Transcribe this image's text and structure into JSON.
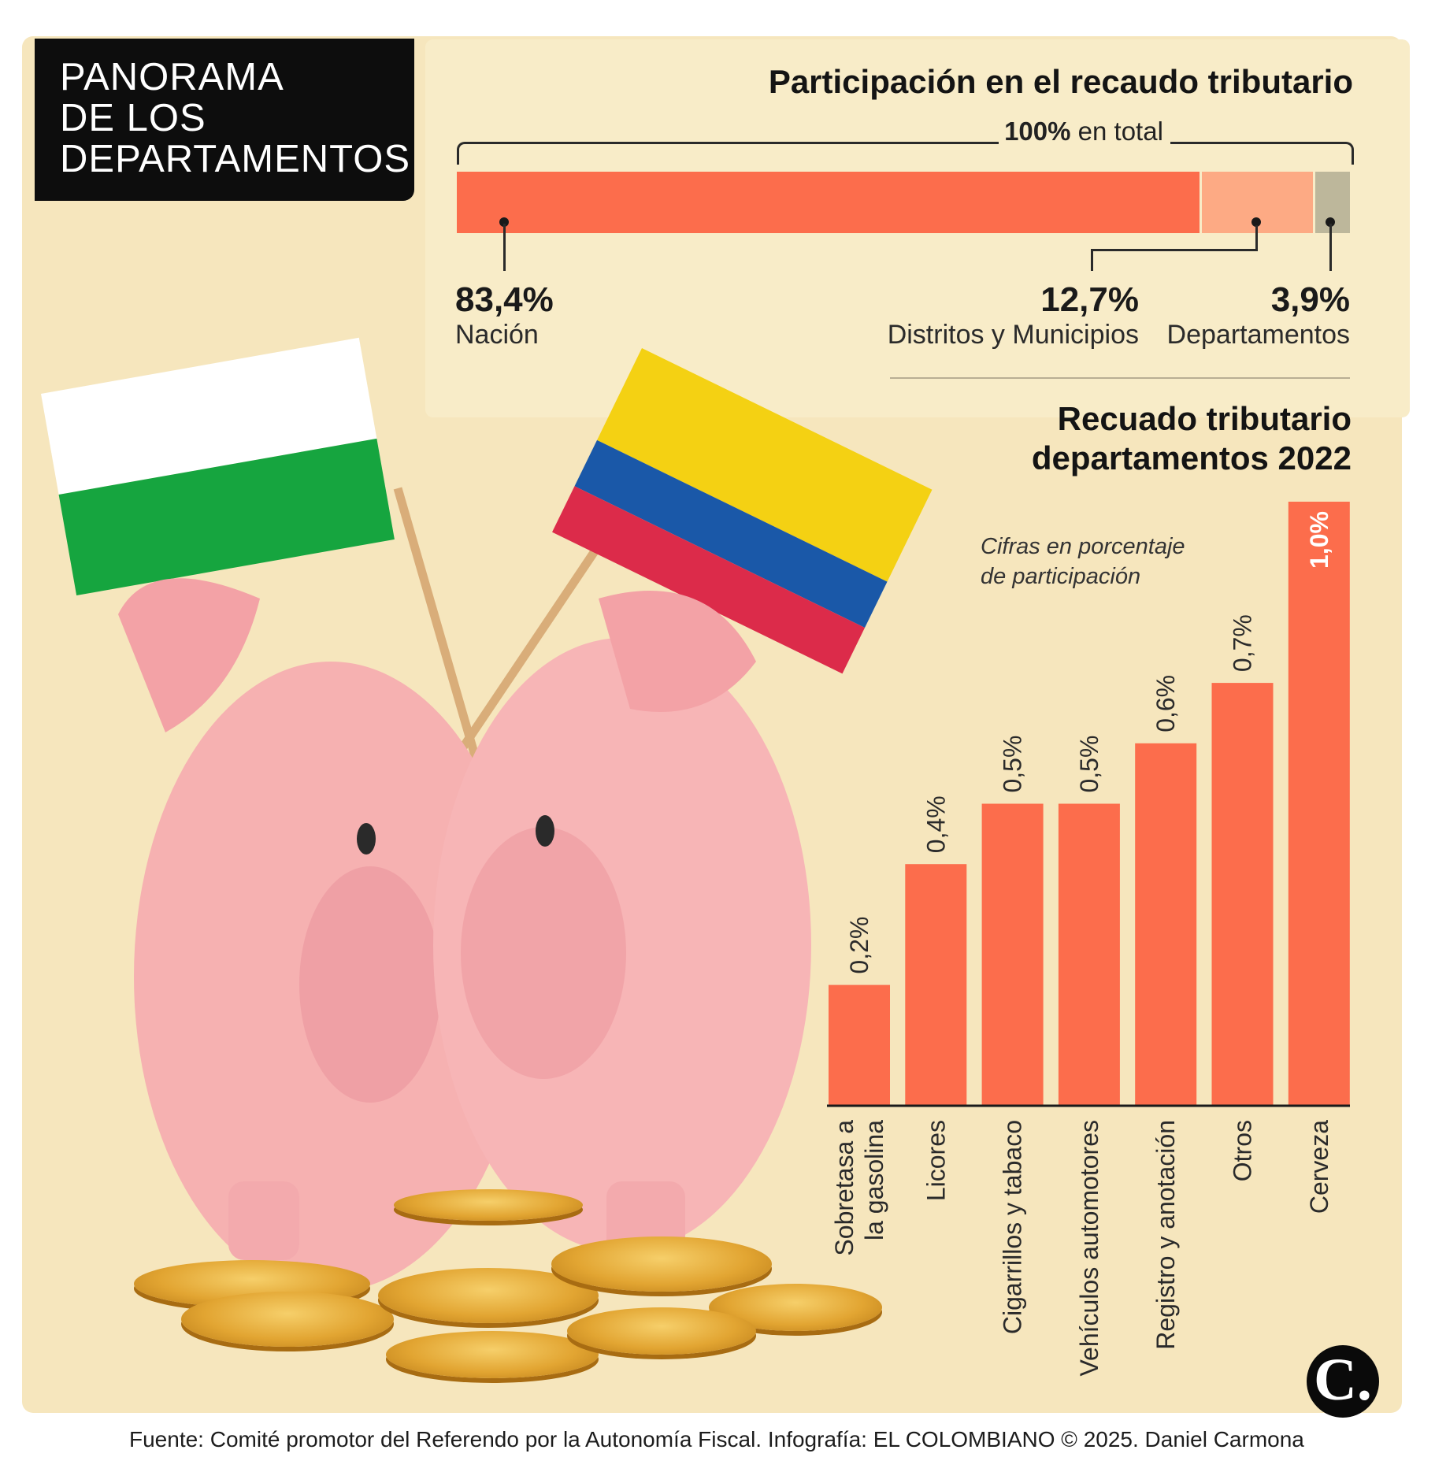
{
  "header": {
    "title_lines": [
      "PANORAMA",
      "DE LOS",
      "DEPARTAMENTOS"
    ]
  },
  "colors": {
    "bar": "#fc6d4c",
    "segment_dept": "#fdaa84",
    "segment_other": "#bdb79b",
    "background": "#f6e6bd"
  },
  "participation": {
    "title": "Participación en el recaudo tributario",
    "total_bold": "100%",
    "total_text": " en total",
    "items": [
      {
        "pct": "83,4%",
        "label": "Nación"
      },
      {
        "pct": "12,7%",
        "label": "Distritos y Municipios"
      },
      {
        "pct": "3,9%",
        "label": "Departamentos"
      }
    ]
  },
  "chart_data": [
    {
      "type": "bar",
      "orientation": "horizontal-stacked",
      "title": "Participación en el recaudo tributario",
      "categories": [
        "Nación",
        "Distritos y Municipios",
        "Departamentos"
      ],
      "values": [
        83.4,
        12.7,
        3.9
      ],
      "unit": "%",
      "total": 100
    },
    {
      "type": "bar",
      "title": "Recuado tributario departamentos 2022",
      "subtitle": "Cifras en porcentaje de participación",
      "categories": [
        "Sobretasa a la gasolina",
        "Licores",
        "Cigarrillos y tabaco",
        "Vehículos automotores",
        "Registro y anotación",
        "Otros",
        "Cerveza"
      ],
      "values": [
        0.2,
        0.4,
        0.5,
        0.5,
        0.6,
        0.7,
        1.0
      ],
      "data_labels": [
        "0,2%",
        "0,4%",
        "0,5%",
        "0,5%",
        "0,6%",
        "0,7%",
        "1,0%"
      ],
      "ylim": [
        0,
        1.0
      ],
      "grid": false
    }
  ],
  "revenue": {
    "title_lines": [
      "Recuado tributario",
      "departamentos 2022"
    ],
    "note_lines": [
      "Cifras en porcentaje",
      "de participación"
    ],
    "category_lines": [
      [
        "Sobretasa a",
        "la gasolina"
      ],
      [
        "Licores"
      ],
      [
        "Cigarrillos y tabaco"
      ],
      [
        "Vehículos automotores"
      ],
      [
        "Registro y anotación"
      ],
      [
        "Otros"
      ],
      [
        "Cerveza"
      ]
    ]
  },
  "logo": {
    "text": "C."
  },
  "source": "Fuente: Comité promotor del Referendo por la Autonomía Fiscal. Infografía: EL COLOMBIANO © 2025. Daniel Carmona"
}
